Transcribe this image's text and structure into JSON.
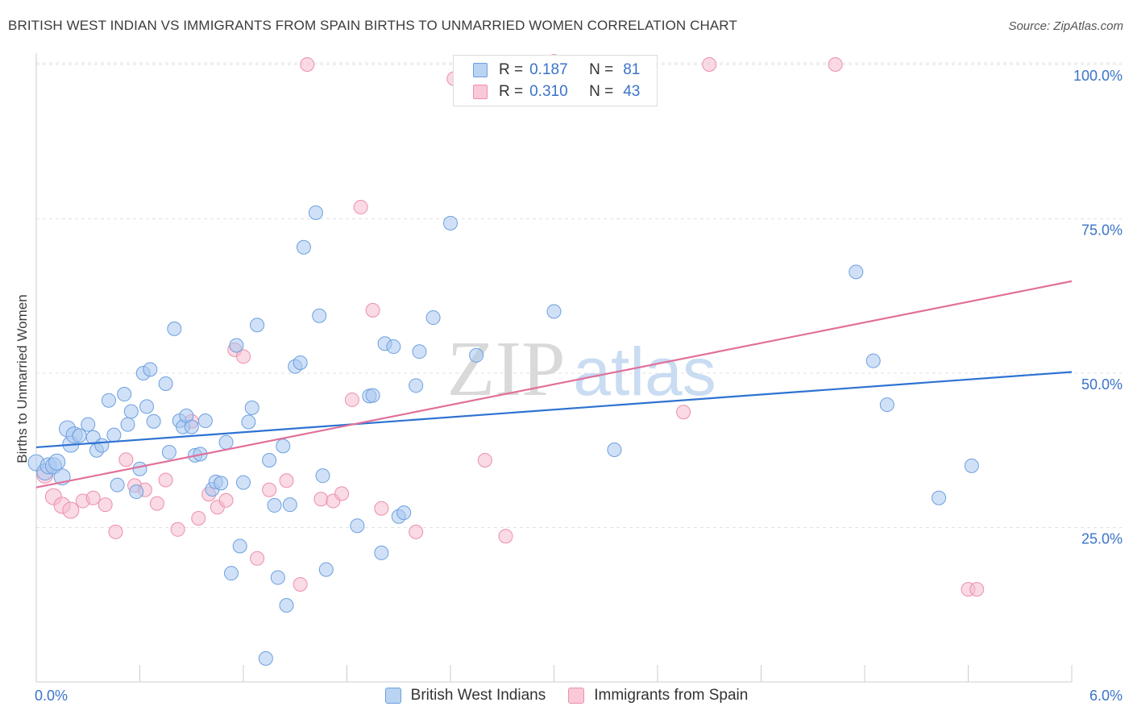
{
  "title": "BRITISH WEST INDIAN VS IMMIGRANTS FROM SPAIN BIRTHS TO UNMARRIED WOMEN CORRELATION CHART",
  "source": "Source: ZipAtlas.com",
  "watermark": {
    "zip": "ZIP",
    "atlas": "atlas"
  },
  "legend": {
    "series1": {
      "r_label": "R =",
      "r_value": "0.187",
      "n_label": "N =",
      "n_value": "81"
    },
    "series2": {
      "r_label": "R =",
      "r_value": "0.310",
      "n_label": "N =",
      "n_value": "43"
    }
  },
  "bottom_legend": {
    "series1": "British West Indians",
    "series2": "Immigrants from Spain"
  },
  "colors": {
    "blue_fill": "#a9c8f0",
    "blue_stroke": "#6d9fe0",
    "blue_line": "#2e72d2",
    "pink_fill": "#f6bccd",
    "pink_stroke": "#ec8fab",
    "pink_line": "#e0709a",
    "tick_text": "#3a73c9",
    "grid": "#e2e2e2"
  },
  "chart_data": {
    "type": "scatter",
    "title": "BRITISH WEST INDIAN VS IMMIGRANTS FROM SPAIN BIRTHS TO UNMARRIED WOMEN CORRELATION CHART",
    "xlabel": "",
    "ylabel": "Births to Unmarried Women",
    "xlim": [
      0,
      6
    ],
    "ylim": [
      0,
      102
    ],
    "x_tick_labels": [
      "0.0%",
      "6.0%"
    ],
    "y_ticks": [
      25,
      50,
      75,
      100
    ],
    "y_tick_labels": [
      "25.0%",
      "50.0%",
      "75.0%",
      "100.0%"
    ],
    "series": [
      {
        "name": "British West Indians",
        "color": "blue",
        "trend": {
          "x": [
            0,
            6
          ],
          "y": [
            38.0,
            50.2
          ]
        },
        "points": [
          [
            0.0,
            35.5
          ],
          [
            0.05,
            34.0
          ],
          [
            0.07,
            35.0
          ],
          [
            0.1,
            35.0
          ],
          [
            0.12,
            35.6
          ],
          [
            0.15,
            33.2
          ],
          [
            0.18,
            41.0
          ],
          [
            0.2,
            38.5
          ],
          [
            0.22,
            40.0
          ],
          [
            0.25,
            39.9
          ],
          [
            0.3,
            41.7
          ],
          [
            0.33,
            39.6
          ],
          [
            0.35,
            37.5
          ],
          [
            0.38,
            38.3
          ],
          [
            0.42,
            45.6
          ],
          [
            0.45,
            40.0
          ],
          [
            0.47,
            31.9
          ],
          [
            0.51,
            46.6
          ],
          [
            0.53,
            41.7
          ],
          [
            0.55,
            43.8
          ],
          [
            0.58,
            30.8
          ],
          [
            0.6,
            34.5
          ],
          [
            0.62,
            50.0
          ],
          [
            0.64,
            44.6
          ],
          [
            0.66,
            50.6
          ],
          [
            0.68,
            42.2
          ],
          [
            0.75,
            48.3
          ],
          [
            0.77,
            37.2
          ],
          [
            0.8,
            57.2
          ],
          [
            0.83,
            42.3
          ],
          [
            0.85,
            41.3
          ],
          [
            0.87,
            43.1
          ],
          [
            0.9,
            41.3
          ],
          [
            0.92,
            36.7
          ],
          [
            0.95,
            36.9
          ],
          [
            0.98,
            42.3
          ],
          [
            1.02,
            31.2
          ],
          [
            1.04,
            32.4
          ],
          [
            1.07,
            32.2
          ],
          [
            1.1,
            38.8
          ],
          [
            1.13,
            17.6
          ],
          [
            1.16,
            54.5
          ],
          [
            1.18,
            22.0
          ],
          [
            1.2,
            32.3
          ],
          [
            1.23,
            42.1
          ],
          [
            1.25,
            44.4
          ],
          [
            1.28,
            57.8
          ],
          [
            1.33,
            3.8
          ],
          [
            1.35,
            35.9
          ],
          [
            1.38,
            28.6
          ],
          [
            1.4,
            16.9
          ],
          [
            1.43,
            38.2
          ],
          [
            1.45,
            12.4
          ],
          [
            1.47,
            28.7
          ],
          [
            1.5,
            51.1
          ],
          [
            1.53,
            51.7
          ],
          [
            1.55,
            70.4
          ],
          [
            1.62,
            76.0
          ],
          [
            1.64,
            59.3
          ],
          [
            1.66,
            33.4
          ],
          [
            1.68,
            18.2
          ],
          [
            1.86,
            25.3
          ],
          [
            1.93,
            46.3
          ],
          [
            1.95,
            46.4
          ],
          [
            2.0,
            20.9
          ],
          [
            2.02,
            54.8
          ],
          [
            2.07,
            54.3
          ],
          [
            2.1,
            26.8
          ],
          [
            2.13,
            27.4
          ],
          [
            2.2,
            48.0
          ],
          [
            2.22,
            53.5
          ],
          [
            2.3,
            59.0
          ],
          [
            2.4,
            74.3
          ],
          [
            2.55,
            52.9
          ],
          [
            3.0,
            60.0
          ],
          [
            3.35,
            37.6
          ],
          [
            4.75,
            66.4
          ],
          [
            4.85,
            52.0
          ],
          [
            4.93,
            44.9
          ],
          [
            5.23,
            29.8
          ],
          [
            5.42,
            35.0
          ]
        ]
      },
      {
        "name": "Immigrants from Spain",
        "color": "pink",
        "trend": {
          "x": [
            0,
            6
          ],
          "y": [
            31.5,
            64.9
          ]
        },
        "points": [
          [
            0.05,
            33.5
          ],
          [
            0.1,
            30.0
          ],
          [
            0.15,
            28.6
          ],
          [
            0.2,
            27.8
          ],
          [
            0.27,
            29.3
          ],
          [
            0.33,
            29.8
          ],
          [
            0.4,
            28.7
          ],
          [
            0.46,
            24.3
          ],
          [
            0.52,
            36.0
          ],
          [
            0.57,
            31.8
          ],
          [
            0.63,
            31.1
          ],
          [
            0.7,
            28.9
          ],
          [
            0.75,
            32.7
          ],
          [
            0.82,
            24.7
          ],
          [
            0.9,
            42.2
          ],
          [
            0.94,
            26.5
          ],
          [
            1.0,
            30.4
          ],
          [
            1.05,
            28.3
          ],
          [
            1.1,
            29.4
          ],
          [
            1.15,
            53.8
          ],
          [
            1.2,
            52.7
          ],
          [
            1.28,
            20.0
          ],
          [
            1.35,
            31.1
          ],
          [
            1.45,
            32.6
          ],
          [
            1.53,
            15.8
          ],
          [
            1.57,
            100.0
          ],
          [
            1.65,
            29.6
          ],
          [
            1.72,
            29.3
          ],
          [
            1.77,
            30.5
          ],
          [
            1.83,
            45.7
          ],
          [
            1.88,
            76.9
          ],
          [
            1.95,
            60.2
          ],
          [
            2.0,
            28.1
          ],
          [
            2.2,
            24.3
          ],
          [
            2.42,
            97.7
          ],
          [
            2.6,
            35.9
          ],
          [
            2.72,
            23.6
          ],
          [
            3.0,
            100.5
          ],
          [
            3.75,
            43.7
          ],
          [
            3.9,
            100.0
          ],
          [
            4.63,
            100.0
          ],
          [
            5.4,
            15.0
          ],
          [
            5.45,
            15.0
          ]
        ]
      }
    ]
  }
}
